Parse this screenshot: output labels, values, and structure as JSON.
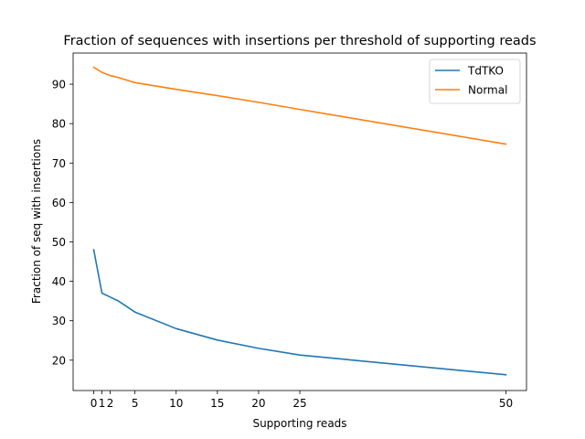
{
  "chart_data": {
    "type": "line",
    "title": "Fraction of sequences with insertions per threshold of supporting reads",
    "xlabel": "Supporting reads",
    "ylabel": "Fraction of seq with insertions",
    "x": [
      0,
      1,
      2,
      3,
      5,
      10,
      15,
      20,
      25,
      50
    ],
    "xticks": [
      0,
      1,
      2,
      5,
      10,
      15,
      20,
      25,
      50
    ],
    "xtick_labels": [
      "0",
      "1",
      "2",
      "5",
      "10",
      "15",
      "20",
      "25",
      "50"
    ],
    "yticks": [
      20,
      30,
      40,
      50,
      60,
      70,
      80,
      90
    ],
    "xlim": [
      -2.5,
      52.5
    ],
    "ylim": [
      12.3,
      97.9
    ],
    "grid": false,
    "legend_position": "top-right",
    "series": [
      {
        "name": "TdTKO",
        "color": "#1f77b4",
        "values": [
          48.0,
          37.0,
          36.0,
          35.0,
          32.2,
          28.0,
          25.1,
          23.0,
          21.3,
          16.3
        ]
      },
      {
        "name": "Normal",
        "color": "#ff7f0e",
        "values": [
          94.3,
          93.0,
          92.2,
          91.7,
          90.4,
          88.7,
          87.1,
          85.4,
          83.6,
          74.8
        ]
      }
    ]
  }
}
